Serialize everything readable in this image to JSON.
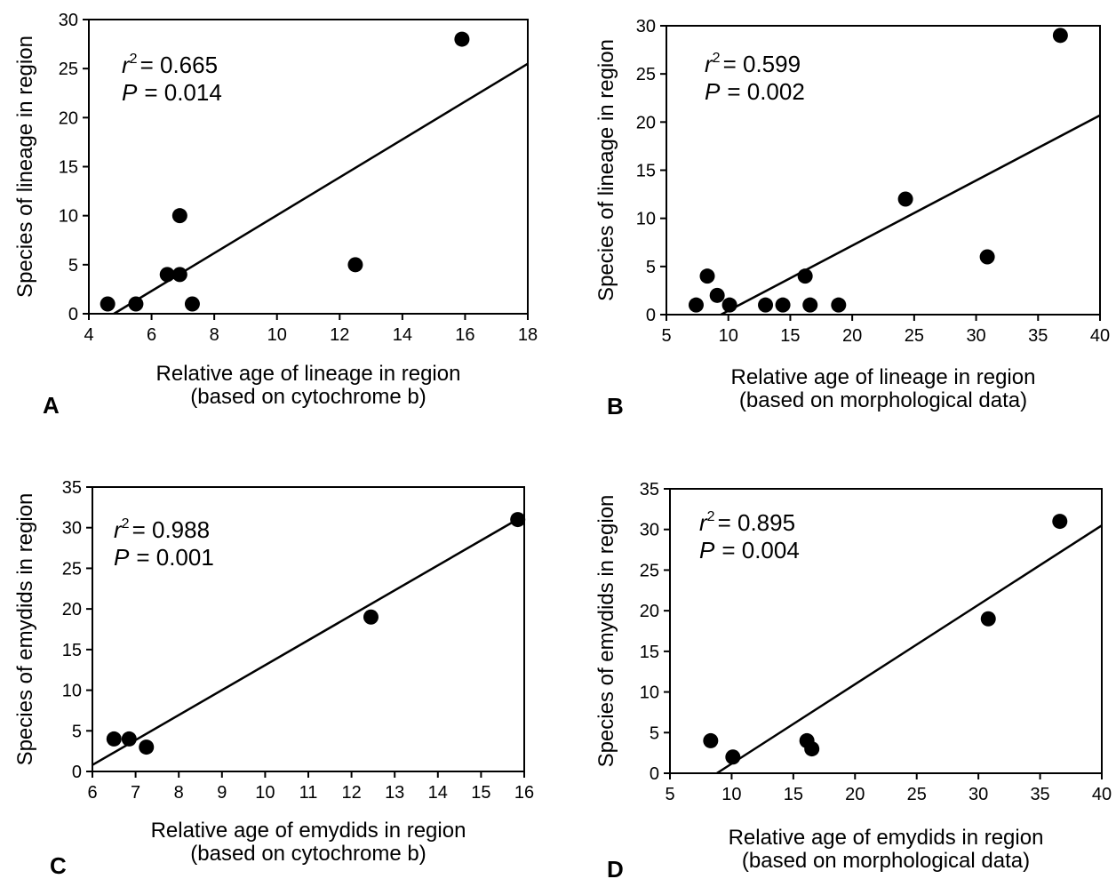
{
  "chart_data": [
    {
      "type": "scatter",
      "panel_label": "A",
      "xlabel": [
        "Relative age of lineage in region",
        "(based on cytochrome b)"
      ],
      "ylabel": "Species of lineage in region",
      "xlim": [
        4,
        18
      ],
      "ylim": [
        0,
        30
      ],
      "xticks": [
        4,
        6,
        8,
        10,
        12,
        14,
        16,
        18
      ],
      "yticks": [
        0,
        5,
        10,
        15,
        20,
        25,
        30
      ],
      "points": [
        {
          "x": 4.6,
          "y": 1
        },
        {
          "x": 5.5,
          "y": 1
        },
        {
          "x": 6.5,
          "y": 4
        },
        {
          "x": 6.9,
          "y": 4
        },
        {
          "x": 6.9,
          "y": 10
        },
        {
          "x": 7.3,
          "y": 1
        },
        {
          "x": 12.5,
          "y": 5
        },
        {
          "x": 15.9,
          "y": 28
        }
      ],
      "regression": {
        "x": [
          4.8,
          18
        ],
        "y": [
          0,
          25.5
        ]
      },
      "stats": {
        "r2_symbol": "r",
        "r2_exp": "2",
        "r2_value": "= 0.665",
        "p_symbol": "P",
        "p_value": "= 0.014"
      },
      "legend": "none",
      "grid": false
    },
    {
      "type": "scatter",
      "panel_label": "B",
      "xlabel": [
        "Relative age of lineage in region",
        "(based on morphological data)"
      ],
      "ylabel": "Species of lineage in region",
      "xlim": [
        5,
        40
      ],
      "ylim": [
        0,
        30
      ],
      "xticks": [
        5,
        10,
        15,
        20,
        25,
        30,
        35,
        40
      ],
      "yticks": [
        0,
        5,
        10,
        15,
        20,
        25,
        30
      ],
      "points": [
        {
          "x": 7.4,
          "y": 1
        },
        {
          "x": 8.3,
          "y": 4
        },
        {
          "x": 9.1,
          "y": 2
        },
        {
          "x": 10.1,
          "y": 1
        },
        {
          "x": 13.0,
          "y": 1
        },
        {
          "x": 14.4,
          "y": 1
        },
        {
          "x": 16.2,
          "y": 4
        },
        {
          "x": 16.6,
          "y": 1
        },
        {
          "x": 18.9,
          "y": 1
        },
        {
          "x": 24.3,
          "y": 12
        },
        {
          "x": 30.9,
          "y": 6
        },
        {
          "x": 36.8,
          "y": 29
        }
      ],
      "regression": {
        "x": [
          9.4,
          40
        ],
        "y": [
          0,
          20.7
        ]
      },
      "stats": {
        "r2_symbol": "r",
        "r2_exp": "2",
        "r2_value": "= 0.599",
        "p_symbol": "P",
        "p_value": "= 0.002"
      },
      "legend": "none",
      "grid": false
    },
    {
      "type": "scatter",
      "panel_label": "C",
      "xlabel": [
        "Relative age of emydids in region",
        "(based on cytochrome b)"
      ],
      "ylabel": "Species of emydids in region",
      "xlim": [
        6,
        16
      ],
      "ylim": [
        0,
        35
      ],
      "xticks": [
        6,
        7,
        8,
        9,
        10,
        11,
        12,
        13,
        14,
        15,
        16
      ],
      "yticks": [
        0,
        5,
        10,
        15,
        20,
        25,
        30,
        35
      ],
      "points": [
        {
          "x": 6.5,
          "y": 4
        },
        {
          "x": 6.85,
          "y": 4
        },
        {
          "x": 7.25,
          "y": 3
        },
        {
          "x": 12.45,
          "y": 19
        },
        {
          "x": 15.85,
          "y": 31
        }
      ],
      "regression": {
        "x": [
          6,
          16
        ],
        "y": [
          0.8,
          31.5
        ]
      },
      "stats": {
        "r2_symbol": "r",
        "r2_exp": "2",
        "r2_value": "= 0.988",
        "p_symbol": "P",
        "p_value": "= 0.001"
      },
      "legend": "none",
      "grid": false
    },
    {
      "type": "scatter",
      "panel_label": "D",
      "xlabel": [
        "Relative age of emydids in region",
        "(based on morphological data)"
      ],
      "ylabel": "Species of emydids in region",
      "xlim": [
        5,
        40
      ],
      "ylim": [
        0,
        35
      ],
      "xticks": [
        5,
        10,
        15,
        20,
        25,
        30,
        35,
        40
      ],
      "yticks": [
        0,
        5,
        10,
        15,
        20,
        25,
        30,
        35
      ],
      "points": [
        {
          "x": 8.3,
          "y": 4
        },
        {
          "x": 10.1,
          "y": 2
        },
        {
          "x": 16.1,
          "y": 4
        },
        {
          "x": 16.5,
          "y": 3
        },
        {
          "x": 30.8,
          "y": 19
        },
        {
          "x": 36.6,
          "y": 31
        }
      ],
      "regression": {
        "x": [
          8.8,
          40
        ],
        "y": [
          0,
          30.5
        ]
      },
      "stats": {
        "r2_symbol": "r",
        "r2_exp": "2",
        "r2_value": "= 0.895",
        "p_symbol": "P",
        "p_value": "= 0.004"
      },
      "legend": "none",
      "grid": false
    }
  ]
}
